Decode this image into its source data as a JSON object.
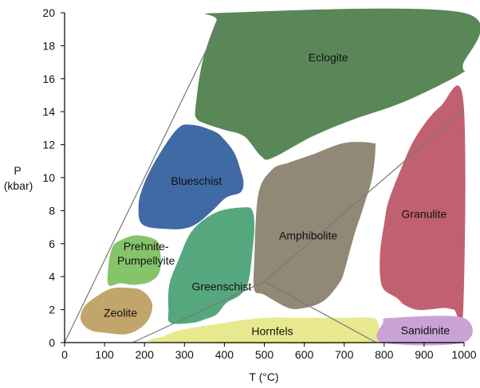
{
  "chart_data": {
    "type": "area",
    "title": "",
    "xlabel": "T (°C)",
    "ylabel": "P",
    "ylabel_unit": "(kbar)",
    "xlim": [
      0,
      1000
    ],
    "ylim": [
      0,
      20
    ],
    "xticks": [
      0,
      100,
      200,
      300,
      400,
      500,
      600,
      700,
      800,
      900,
      1000
    ],
    "yticks": [
      0,
      2,
      4,
      6,
      8,
      10,
      12,
      14,
      16,
      18,
      20
    ],
    "grid": false,
    "facies": [
      {
        "name": "Eclogite",
        "color": "#5a8758",
        "label_at": [
          660,
          17.3
        ],
        "outline": [
          [
            400,
            20
          ],
          [
            998,
            20
          ],
          [
            997,
            16.8
          ],
          [
            992,
            16.3
          ],
          [
            850,
            14.6
          ],
          [
            720,
            13.5
          ],
          [
            620,
            12.5
          ],
          [
            520,
            11.2
          ],
          [
            492,
            11.3
          ],
          [
            450,
            12.5
          ],
          [
            400,
            12.9
          ],
          [
            350,
            13.3
          ],
          [
            330,
            13.6
          ],
          [
            328,
            14.3
          ],
          [
            345,
            17
          ],
          [
            380,
            19.5
          ]
        ]
      },
      {
        "name": "Blueschist",
        "color": "#3f6aa3",
        "label_at": [
          330,
          9.8
        ],
        "outline": [
          [
            280,
            12.9
          ],
          [
            320,
            13.2
          ],
          [
            375,
            12.8
          ],
          [
            400,
            12.3
          ],
          [
            425,
            11.5
          ],
          [
            440,
            10.5
          ],
          [
            448,
            9.7
          ],
          [
            440,
            9.1
          ],
          [
            405,
            8.8
          ],
          [
            370,
            8
          ],
          [
            330,
            7.2
          ],
          [
            295,
            6.9
          ],
          [
            250,
            6.9
          ],
          [
            210,
            7
          ],
          [
            190,
            7.3
          ],
          [
            185,
            8
          ],
          [
            190,
            9
          ],
          [
            220,
            10.7
          ]
        ]
      },
      {
        "name": "Prehnite-\nPumpellyite",
        "color": "#86c46a",
        "label_at": [
          204,
          5.4
        ],
        "outline": [
          [
            140,
            6.2
          ],
          [
            180,
            6.5
          ],
          [
            230,
            6.2
          ],
          [
            240,
            5.4
          ],
          [
            238,
            4.3
          ],
          [
            215,
            3.7
          ],
          [
            175,
            3.5
          ],
          [
            140,
            3.6
          ],
          [
            110,
            3.5
          ],
          [
            110,
            4.7
          ],
          [
            120,
            5.8
          ]
        ]
      },
      {
        "name": "Zeolite",
        "color": "#c2a56a",
        "label_at": [
          140,
          1.8
        ],
        "outline": [
          [
            120,
            3.3
          ],
          [
            170,
            3.3
          ],
          [
            190,
            3.2
          ],
          [
            210,
            2.8
          ],
          [
            220,
            2.2
          ],
          [
            210,
            1.4
          ],
          [
            185,
            0.8
          ],
          [
            150,
            0.5
          ],
          [
            100,
            0.6
          ],
          [
            70,
            0.7
          ],
          [
            50,
            1
          ],
          [
            40,
            1.5
          ],
          [
            50,
            2.2
          ],
          [
            80,
            2.8
          ]
        ]
      },
      {
        "name": "Greenschist",
        "color": "#55a87e",
        "label_at": [
          393,
          3.4
        ],
        "outline": [
          [
            380,
            7.9
          ],
          [
            450,
            8.2
          ],
          [
            470,
            8
          ],
          [
            475,
            7
          ],
          [
            470,
            5.5
          ],
          [
            460,
            3.7
          ],
          [
            440,
            2.9
          ],
          [
            405,
            2.4
          ],
          [
            380,
            1.7
          ],
          [
            350,
            1.4
          ],
          [
            320,
            1.2
          ],
          [
            265,
            1.2
          ],
          [
            260,
            2
          ],
          [
            262,
            3.5
          ],
          [
            285,
            5
          ],
          [
            320,
            6.8
          ]
        ]
      },
      {
        "name": "Amphibolite",
        "color": "#928876",
        "label_at": [
          610,
          6.5
        ],
        "outline": [
          [
            520,
            10.5
          ],
          [
            560,
            10.9
          ],
          [
            620,
            11.4
          ],
          [
            700,
            12.1
          ],
          [
            770,
            12.1
          ],
          [
            778,
            11.8
          ],
          [
            770,
            10
          ],
          [
            748,
            8.2
          ],
          [
            725,
            6.5
          ],
          [
            700,
            4.3
          ],
          [
            690,
            3.7
          ],
          [
            665,
            2.9
          ],
          [
            640,
            2.4
          ],
          [
            600,
            2.1
          ],
          [
            560,
            2.1
          ],
          [
            500,
            2.9
          ],
          [
            475,
            3.2
          ],
          [
            475,
            5
          ],
          [
            485,
            9
          ]
        ]
      },
      {
        "name": "Granulite",
        "color": "#c1616f",
        "label_at": [
          900,
          7.8
        ],
        "outline": [
          [
            940,
            14.3
          ],
          [
            998,
            14.7
          ],
          [
            998,
            2
          ],
          [
            975,
            2
          ],
          [
            950,
            2.1
          ],
          [
            910,
            2
          ],
          [
            880,
            2
          ],
          [
            850,
            2.3
          ],
          [
            832,
            2.7
          ],
          [
            800,
            3.2
          ],
          [
            790,
            4
          ],
          [
            790,
            5.5
          ],
          [
            800,
            7.2
          ],
          [
            810,
            8.5
          ],
          [
            840,
            10.4
          ],
          [
            880,
            12.5
          ]
        ]
      },
      {
        "name": "Hornfels",
        "color": "#e8e88e",
        "label_at": [
          520,
          0.7
        ],
        "outline": [
          [
            250,
            0
          ],
          [
            250,
            0.4
          ],
          [
            300,
            0.8
          ],
          [
            400,
            1.2
          ],
          [
            500,
            1.5
          ],
          [
            600,
            1.5
          ],
          [
            700,
            1.5
          ],
          [
            770,
            1.5
          ],
          [
            785,
            1.2
          ],
          [
            787,
            0.9
          ],
          [
            787,
            0
          ]
        ]
      },
      {
        "name": "Sanidinite",
        "color": "#c9a3d6",
        "label_at": [
          903,
          0.75
        ],
        "outline": [
          [
            797,
            0
          ],
          [
            797,
            1.2
          ],
          [
            820,
            1.5
          ],
          [
            998,
            1.5
          ],
          [
            998,
            0
          ]
        ]
      }
    ],
    "reference_lines": [
      {
        "points": [
          [
            0,
            0
          ],
          [
            400,
            20
          ]
        ]
      },
      {
        "points": [
          [
            170,
            0
          ],
          [
            500,
            3.7
          ],
          [
            1000,
            14.1
          ]
        ]
      },
      {
        "points": [
          [
            500,
            3.7
          ],
          [
            780,
            0
          ]
        ]
      }
    ],
    "colors": {
      "axis": "#000000",
      "reference_line": "#777777",
      "background": "#ffffff"
    }
  }
}
